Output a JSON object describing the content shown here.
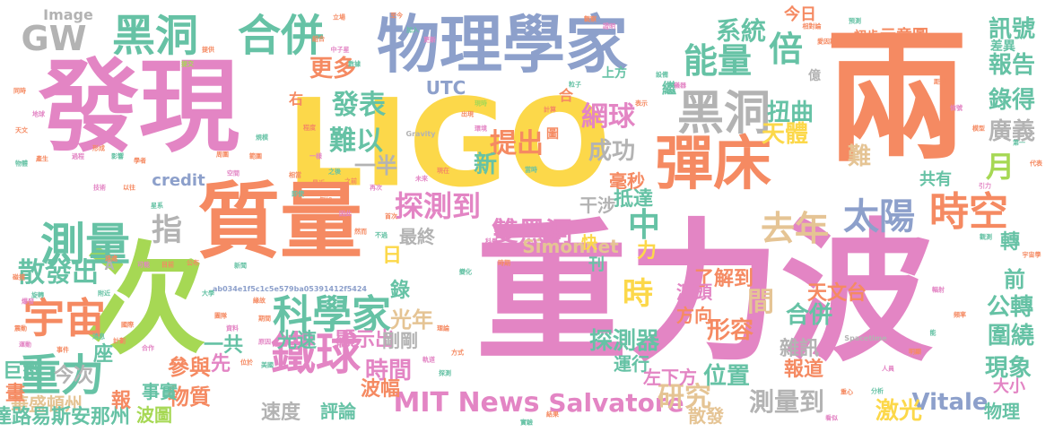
{
  "cloud": {
    "background": "#ffffff",
    "palette": {
      "pink": "#e385c4",
      "yellow": "#fcd84a",
      "orange": "#f58a62",
      "blue": "#8da0cb",
      "green": "#a6d854",
      "teal": "#66c2a5",
      "gray": "#b3b3b3",
      "tan": "#e5c494"
    },
    "words": [
      {
        "text": "重力波",
        "color": "pink"
      },
      {
        "text": "LIGO",
        "color": "yellow"
      },
      {
        "text": "兩",
        "color": "orange"
      },
      {
        "text": "發現",
        "color": "pink"
      },
      {
        "text": "次",
        "color": "green"
      },
      {
        "text": "質量",
        "color": "orange"
      },
      {
        "text": "物理學家",
        "color": "blue"
      },
      {
        "text": "彈床",
        "color": "orange"
      },
      {
        "text": "黑洞",
        "color": "teal"
      },
      {
        "text": "合併",
        "color": "teal"
      },
      {
        "text": "GW",
        "color": "gray"
      },
      {
        "text": "黑洞",
        "color": "gray"
      },
      {
        "text": "太陽",
        "color": "blue"
      },
      {
        "text": "時空",
        "color": "orange"
      },
      {
        "text": "測量",
        "color": "teal"
      },
      {
        "text": "宇宙",
        "color": "orange"
      },
      {
        "text": "鐵球",
        "color": "pink"
      },
      {
        "text": "科學家",
        "color": "teal"
      },
      {
        "text": "MIT News",
        "color": "pink"
      },
      {
        "text": "Salvatore",
        "color": "pink"
      },
      {
        "text": "重力",
        "color": "teal"
      },
      {
        "text": "能量",
        "color": "teal"
      },
      {
        "text": "倍",
        "color": "teal"
      },
      {
        "text": "去年",
        "color": "tan"
      },
      {
        "text": "中",
        "color": "teal"
      },
      {
        "text": "時",
        "color": "yellow"
      },
      {
        "text": "指",
        "color": "gray"
      },
      {
        "text": "散發出",
        "color": "teal"
      },
      {
        "text": "探測到",
        "color": "pink"
      },
      {
        "text": "雙黑洞",
        "color": "pink"
      },
      {
        "text": "系統",
        "color": "teal"
      },
      {
        "text": "報告",
        "color": "teal"
      },
      {
        "text": "訊號",
        "color": "teal"
      },
      {
        "text": "錄得",
        "color": "teal"
      },
      {
        "text": "月",
        "color": "green"
      },
      {
        "text": "網球",
        "color": "pink"
      },
      {
        "text": "提出",
        "color": "orange"
      },
      {
        "text": "難以",
        "color": "teal"
      },
      {
        "text": "發表",
        "color": "teal"
      },
      {
        "text": "更多",
        "color": "orange"
      },
      {
        "text": "扭曲",
        "color": "teal"
      },
      {
        "text": "天體",
        "color": "yellow"
      },
      {
        "text": "成功",
        "color": "gray"
      },
      {
        "text": "新",
        "color": "teal"
      },
      {
        "text": "一半",
        "color": "gray"
      },
      {
        "text": "廣義",
        "color": "gray"
      },
      {
        "text": "難",
        "color": "tan"
      },
      {
        "text": "研究",
        "color": "tan"
      },
      {
        "text": "測量到",
        "color": "gray"
      },
      {
        "text": "Vitale",
        "color": "blue"
      },
      {
        "text": "激光",
        "color": "yellow"
      },
      {
        "text": "圍繞",
        "color": "teal"
      },
      {
        "text": "現象",
        "color": "teal"
      },
      {
        "text": "公轉",
        "color": "teal"
      },
      {
        "text": "探測器",
        "color": "teal"
      },
      {
        "text": "位置",
        "color": "teal"
      },
      {
        "text": "形容",
        "color": "orange"
      },
      {
        "text": "間",
        "color": "tan"
      },
      {
        "text": "合併",
        "color": "teal"
      },
      {
        "text": "時間",
        "color": "pink"
      },
      {
        "text": "光年",
        "color": "tan"
      },
      {
        "text": "天文台",
        "color": "orange"
      },
      {
        "text": "參與",
        "color": "orange"
      },
      {
        "text": "物質",
        "color": "orange"
      },
      {
        "text": "巨型",
        "color": "teal"
      },
      {
        "text": "今次",
        "color": "gray"
      },
      {
        "text": "華盛頓州",
        "color": "tan"
      },
      {
        "text": "達路易斯安那州",
        "color": "teal"
      },
      {
        "text": "波圖",
        "color": "green"
      },
      {
        "text": "報",
        "color": "orange"
      },
      {
        "text": "一共",
        "color": "teal"
      },
      {
        "text": "先",
        "color": "pink"
      },
      {
        "text": "座",
        "color": "teal"
      },
      {
        "text": "畫",
        "color": "orange"
      },
      {
        "text": "事實",
        "color": "teal"
      },
      {
        "text": "光速",
        "color": "teal"
      },
      {
        "text": "顯示出",
        "color": "pink"
      },
      {
        "text": "剛剛",
        "color": "gray"
      },
      {
        "text": "波幅",
        "color": "orange"
      },
      {
        "text": "速度",
        "color": "gray"
      },
      {
        "text": "評論",
        "color": "teal"
      },
      {
        "text": "散發",
        "color": "tan"
      },
      {
        "text": "大小",
        "color": "pink"
      },
      {
        "text": "物理",
        "color": "teal"
      },
      {
        "text": "報道",
        "color": "orange"
      },
      {
        "text": "雜訊",
        "color": "gray"
      },
      {
        "text": "運行",
        "color": "teal"
      },
      {
        "text": "左下方",
        "color": "pink"
      },
      {
        "text": "了解到",
        "color": "orange"
      },
      {
        "text": "源頭",
        "color": "pink"
      },
      {
        "text": "方向",
        "color": "orange"
      },
      {
        "text": "Simonnet",
        "color": "tan"
      },
      {
        "text": "最終",
        "color": "gray"
      },
      {
        "text": "日",
        "color": "yellow"
      },
      {
        "text": "錄",
        "color": "teal"
      },
      {
        "text": "刊",
        "color": "teal"
      },
      {
        "text": "快",
        "color": "yellow"
      },
      {
        "text": "力",
        "color": "yellow"
      },
      {
        "text": "抵達",
        "color": "teal"
      },
      {
        "text": "干涉",
        "color": "gray"
      },
      {
        "text": "毫秒",
        "color": "orange"
      },
      {
        "text": "共有",
        "color": "teal"
      },
      {
        "text": "轉",
        "color": "teal"
      },
      {
        "text": "前",
        "color": "teal"
      },
      {
        "text": "UTC",
        "color": "blue"
      },
      {
        "text": "credit",
        "color": "blue"
      },
      {
        "text": "Image",
        "color": "gray"
      },
      {
        "text": "今日",
        "color": "orange"
      },
      {
        "text": "初步",
        "color": "orange"
      },
      {
        "text": "示意圖",
        "color": "orange"
      },
      {
        "text": "差異",
        "color": "teal"
      },
      {
        "text": "億",
        "color": "gray"
      },
      {
        "text": "上方",
        "color": "teal"
      },
      {
        "text": "合",
        "color": "orange"
      },
      {
        "text": "繼",
        "color": "teal"
      },
      {
        "text": "圖",
        "color": "orange"
      },
      {
        "text": "右",
        "color": "orange"
      },
      {
        "text": "A",
        "color": "gray"
      },
      {
        "text": "ab034e1f5c1c5e579ba05391412f5424",
        "color": "blue"
      },
      {
        "text": "Gravity",
        "color": "gray"
      },
      {
        "text": "Spacetime",
        "color": "gray"
      },
      {
        "text": "立場",
        "color": "orange"
      },
      {
        "text": "至今",
        "color": "orange"
      },
      {
        "text": "加入",
        "color": "teal"
      },
      {
        "text": "更新",
        "color": "pink"
      },
      {
        "text": "提交",
        "color": "green"
      },
      {
        "text": "提供",
        "color": "orange"
      },
      {
        "text": "組合",
        "color": "orange"
      },
      {
        "text": "中子星",
        "color": "pink"
      },
      {
        "text": "數據",
        "color": "teal"
      },
      {
        "text": "觀察",
        "color": "orange"
      },
      {
        "text": "證明",
        "color": "pink"
      },
      {
        "text": "相對論",
        "color": "orange"
      },
      {
        "text": "愛因斯坦",
        "color": "orange"
      },
      {
        "text": "預測",
        "color": "teal"
      },
      {
        "text": "距離",
        "color": "orange"
      },
      {
        "text": "信號",
        "color": "pink"
      },
      {
        "text": "模型",
        "color": "orange"
      },
      {
        "text": "第一",
        "color": "teal"
      },
      {
        "text": "代表",
        "color": "orange"
      },
      {
        "text": "引力",
        "color": "pink"
      },
      {
        "text": "觀測",
        "color": "teal"
      },
      {
        "text": "宇宙學",
        "color": "orange"
      },
      {
        "text": "輻射",
        "color": "pink"
      },
      {
        "text": "頻率",
        "color": "orange"
      },
      {
        "text": "能",
        "color": "teal"
      },
      {
        "text": "明顯",
        "color": "orange"
      },
      {
        "text": "人員",
        "color": "pink"
      },
      {
        "text": "分析",
        "color": "teal"
      },
      {
        "text": "重心",
        "color": "orange"
      },
      {
        "text": "看似",
        "color": "pink"
      },
      {
        "text": "結果",
        "color": "orange"
      },
      {
        "text": "實驗",
        "color": "teal"
      },
      {
        "text": "理論",
        "color": "orange"
      },
      {
        "text": "軌道",
        "color": "pink"
      },
      {
        "text": "方式",
        "color": "orange"
      },
      {
        "text": "探測",
        "color": "teal"
      },
      {
        "text": "時期",
        "color": "orange"
      },
      {
        "text": "科學",
        "color": "pink"
      },
      {
        "text": "變化",
        "color": "teal"
      },
      {
        "text": "出現",
        "color": "orange"
      },
      {
        "text": "環境",
        "color": "pink"
      },
      {
        "text": "現時",
        "color": "green"
      },
      {
        "text": "計算",
        "color": "orange"
      },
      {
        "text": "粒子",
        "color": "teal"
      },
      {
        "text": "表示",
        "color": "orange"
      },
      {
        "text": "儀器",
        "color": "pink"
      },
      {
        "text": "設備",
        "color": "teal"
      },
      {
        "text": "同時",
        "color": "orange"
      },
      {
        "text": "地球",
        "color": "pink"
      },
      {
        "text": "天文",
        "color": "orange"
      },
      {
        "text": "物體",
        "color": "teal"
      },
      {
        "text": "產生",
        "color": "orange"
      },
      {
        "text": "過程",
        "color": "pink"
      },
      {
        "text": "形成",
        "color": "orange"
      },
      {
        "text": "影響",
        "color": "teal"
      },
      {
        "text": "學者",
        "color": "orange"
      },
      {
        "text": "技術",
        "color": "pink"
      },
      {
        "text": "以往",
        "color": "orange"
      },
      {
        "text": "星系",
        "color": "teal"
      },
      {
        "text": "目前",
        "color": "orange"
      },
      {
        "text": "可能",
        "color": "pink"
      },
      {
        "text": "公布",
        "color": "orange"
      },
      {
        "text": "大學",
        "color": "teal"
      },
      {
        "text": "團隊",
        "color": "orange"
      },
      {
        "text": "資料",
        "color": "pink"
      },
      {
        "text": "緣故",
        "color": "orange"
      },
      {
        "text": "新聞",
        "color": "teal"
      },
      {
        "text": "期間",
        "color": "orange"
      },
      {
        "text": "原因",
        "color": "pink"
      },
      {
        "text": "位於",
        "color": "orange"
      },
      {
        "text": "美國",
        "color": "teal"
      },
      {
        "text": "國際",
        "color": "orange"
      },
      {
        "text": "合作",
        "color": "pink"
      },
      {
        "text": "計劃",
        "color": "orange"
      },
      {
        "text": "消息",
        "color": "teal"
      },
      {
        "text": "事件",
        "color": "orange"
      },
      {
        "text": "運動",
        "color": "pink"
      },
      {
        "text": "震動",
        "color": "orange"
      },
      {
        "text": "旋轉",
        "color": "teal"
      },
      {
        "text": "碰撞",
        "color": "orange"
      },
      {
        "text": "爆發",
        "color": "pink"
      },
      {
        "text": "遠處",
        "color": "orange"
      },
      {
        "text": "附近",
        "color": "teal"
      },
      {
        "text": "周圍",
        "color": "orange"
      },
      {
        "text": "空間",
        "color": "pink"
      },
      {
        "text": "範圍",
        "color": "orange"
      },
      {
        "text": "規模",
        "color": "teal"
      },
      {
        "text": "程度",
        "color": "orange"
      },
      {
        "text": "一樣",
        "color": "pink"
      },
      {
        "text": "相當",
        "color": "orange"
      },
      {
        "text": "即使",
        "color": "teal"
      },
      {
        "text": "例如",
        "color": "orange"
      },
      {
        "text": "因此",
        "color": "pink"
      },
      {
        "text": "然而",
        "color": "orange"
      },
      {
        "text": "不過",
        "color": "teal"
      },
      {
        "text": "首次",
        "color": "orange"
      },
      {
        "text": "再次",
        "color": "pink"
      },
      {
        "text": "之前",
        "color": "orange"
      },
      {
        "text": "之後",
        "color": "teal"
      },
      {
        "text": "最近",
        "color": "orange"
      },
      {
        "text": "未來",
        "color": "pink"
      },
      {
        "text": "現在",
        "color": "orange"
      },
      {
        "text": "當時",
        "color": "teal"
      }
    ]
  }
}
